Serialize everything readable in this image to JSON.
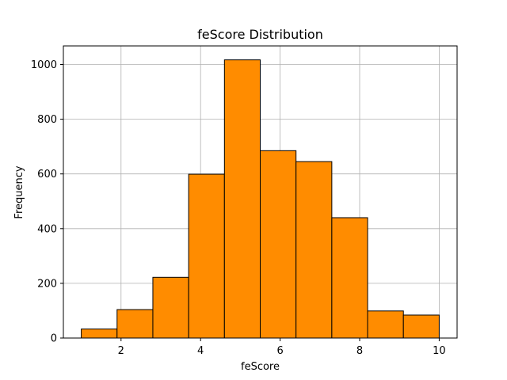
{
  "chart_data": {
    "type": "bar",
    "title": "feScore Distribution",
    "xlabel": "feScore",
    "ylabel": "Frequency",
    "bin_edges": [
      1.0,
      1.9,
      2.8,
      3.7,
      4.6,
      5.5,
      6.4,
      7.3,
      8.2,
      9.1,
      10.0
    ],
    "values": [
      33,
      104,
      222,
      599,
      1017,
      685,
      645,
      440,
      99,
      84
    ],
    "xlim": [
      0.55,
      10.45
    ],
    "ylim": [
      0,
      1068
    ],
    "x_ticks": [
      2,
      4,
      6,
      8,
      10
    ],
    "y_ticks": [
      0,
      200,
      400,
      600,
      800,
      1000
    ],
    "grid": true,
    "bar_color": "#ff8c00",
    "edge_color": "#000000"
  }
}
